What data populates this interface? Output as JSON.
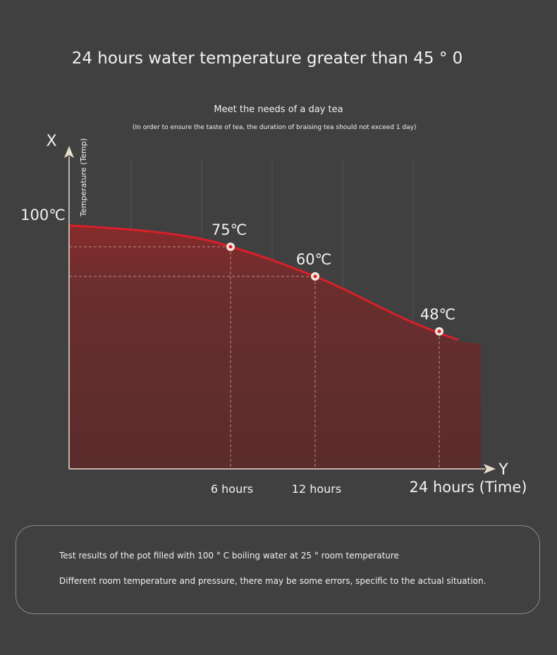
{
  "header": {
    "title": "24 hours water temperature greater than 45 ° 0",
    "subtitle": "Meet the needs of a day tea",
    "note": "(In order to ensure the taste of tea, the duration of braising tea should not exceed 1 day)"
  },
  "chart_data": {
    "type": "area",
    "title": "24 hours water temperature greater than 45 ° 0",
    "x_axis_letter": "Y",
    "y_axis_letter": "X",
    "xlabel": "24 hours (Time)",
    "ylabel": "Temperature (Temp)",
    "y_start_label": "100℃",
    "points": [
      {
        "hours": 0,
        "temp": 100
      },
      {
        "hours": 6,
        "temp": 75,
        "label": "75℃",
        "tick": "6 hours"
      },
      {
        "hours": 12,
        "temp": 60,
        "label": "60℃",
        "tick": "12 hours"
      },
      {
        "hours": 24,
        "temp": 48,
        "label": "48℃",
        "tick": "24 hours (Time)"
      }
    ],
    "grid": true,
    "colors": {
      "line": "#d8202a",
      "fill": "#5e2c2c",
      "axis": "#e8dccb"
    }
  },
  "footer": {
    "line1": "Test results of the pot filled with 100 ° C boiling water at 25 ° room temperature",
    "line2": "Different room temperature and pressure, there may be some errors, specific to the actual situation."
  }
}
